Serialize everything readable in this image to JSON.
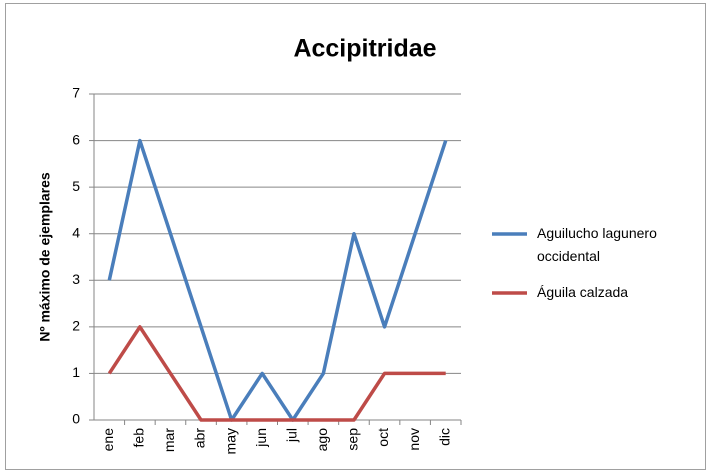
{
  "chart_data": {
    "type": "line",
    "title": "Accipitridae",
    "y_label": "Nº máximo de ejemplares",
    "categories": [
      "ene",
      "feb",
      "mar",
      "abr",
      "may",
      "jun",
      "jul",
      "ago",
      "sep",
      "oct",
      "nov",
      "dic"
    ],
    "series": [
      {
        "name": "Aguilucho lagunero occidental",
        "color": "#4a7ebb",
        "values": [
          3,
          6,
          4,
          2,
          0,
          1,
          0,
          1,
          4,
          2,
          4,
          6
        ]
      },
      {
        "name": "Águila calzada",
        "color": "#be4b48",
        "values": [
          1,
          2,
          1,
          0,
          0,
          0,
          0,
          0,
          0,
          1,
          1,
          1
        ]
      }
    ],
    "ylim": [
      0,
      7
    ],
    "yticks": [
      0,
      1,
      2,
      3,
      4,
      5,
      6,
      7
    ],
    "grid": true,
    "legend": "right"
  }
}
